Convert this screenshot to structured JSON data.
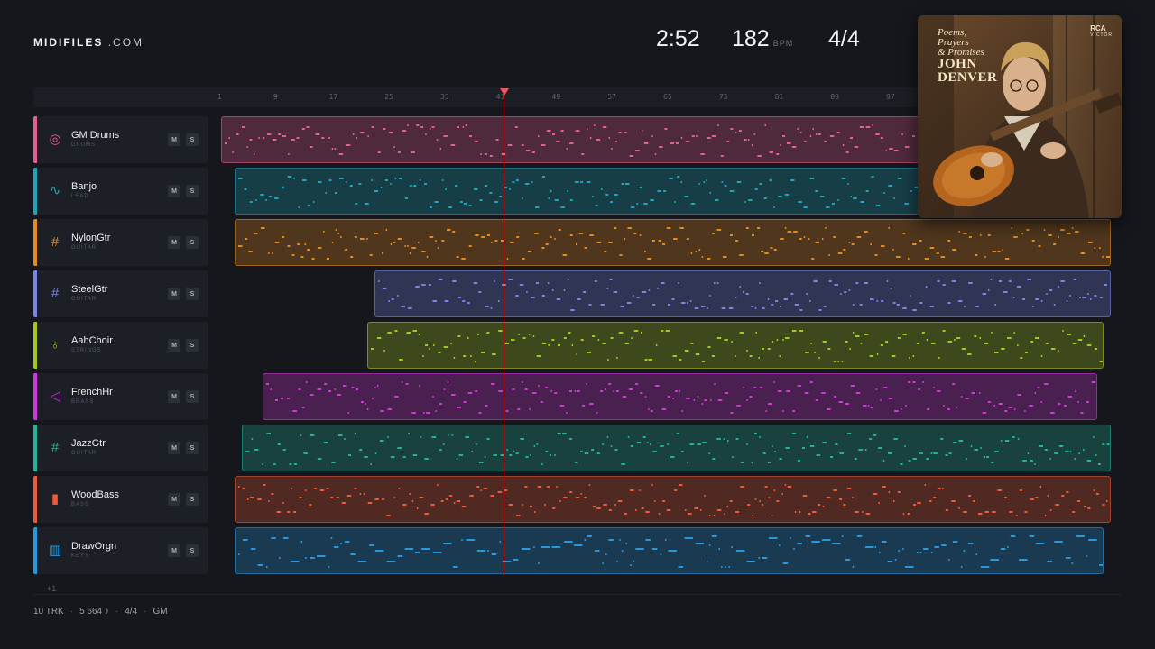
{
  "brand": {
    "bold": "MIDIFILES",
    "rest": ".COM"
  },
  "header": {
    "time": "2:52",
    "tempo": "182",
    "tempo_unit": "BPM",
    "time_signature": "4/4"
  },
  "ruler": {
    "bars": [
      "1",
      "9",
      "17",
      "25",
      "33",
      "41",
      "49",
      "57",
      "65",
      "73",
      "81",
      "89",
      "97"
    ]
  },
  "playhead_bar": 42,
  "tracks": [
    {
      "name": "GM Drums",
      "category": "DRUMS",
      "color": "#e65f8e",
      "icon": "drum-icon",
      "glyph": "◎",
      "mute": "M",
      "solo": "S",
      "start_bar": 1,
      "end_bar": 128
    },
    {
      "name": "Banjo",
      "category": "LEAD",
      "color": "#1ea6b8",
      "icon": "waveform-icon",
      "glyph": "∿",
      "mute": "M",
      "solo": "S",
      "start_bar": 3,
      "end_bar": 128
    },
    {
      "name": "NylonGtr",
      "category": "GUITAR",
      "color": "#e58a1f",
      "icon": "guitar-fretboard-icon",
      "glyph": "#",
      "mute": "M",
      "solo": "S",
      "start_bar": 3,
      "end_bar": 128
    },
    {
      "name": "SteelGtr",
      "category": "GUITAR",
      "color": "#7b85e6",
      "icon": "guitar-fretboard-icon",
      "glyph": "#",
      "mute": "M",
      "solo": "S",
      "start_bar": 23,
      "end_bar": 128
    },
    {
      "name": "AahChoir",
      "category": "STRINGS",
      "color": "#a5c81f",
      "icon": "violin-icon",
      "glyph": "♁",
      "mute": "M",
      "solo": "S",
      "start_bar": 22,
      "end_bar": 127
    },
    {
      "name": "FrenchHr",
      "category": "BRASS",
      "color": "#cf3ad6",
      "icon": "horn-icon",
      "glyph": "◁",
      "mute": "M",
      "solo": "S",
      "start_bar": 7,
      "end_bar": 126
    },
    {
      "name": "JazzGtr",
      "category": "GUITAR",
      "color": "#23b39a",
      "icon": "guitar-fretboard-icon",
      "glyph": "#",
      "mute": "M",
      "solo": "S",
      "start_bar": 4,
      "end_bar": 128
    },
    {
      "name": "WoodBass",
      "category": "BASS",
      "color": "#ee5a37",
      "icon": "bass-icon",
      "glyph": "▮",
      "mute": "M",
      "solo": "S",
      "start_bar": 3,
      "end_bar": 128
    },
    {
      "name": "DrawOrgn",
      "category": "KEYS",
      "color": "#2798de",
      "icon": "piano-keys-icon",
      "glyph": "▥",
      "mute": "M",
      "solo": "S",
      "start_bar": 3,
      "end_bar": 127
    }
  ],
  "more_tracks": "+1",
  "footer": {
    "tracks": "10 TRK",
    "notes": "5 664 ♪",
    "time_signature": "4/4",
    "standard": "GM"
  },
  "album": {
    "line1": "Poems,",
    "line2": "Prayers",
    "line3": "& Promises",
    "line4": "JOHN",
    "line5": "DENVER",
    "label": "RCA",
    "label_sub": "VICTOR"
  }
}
